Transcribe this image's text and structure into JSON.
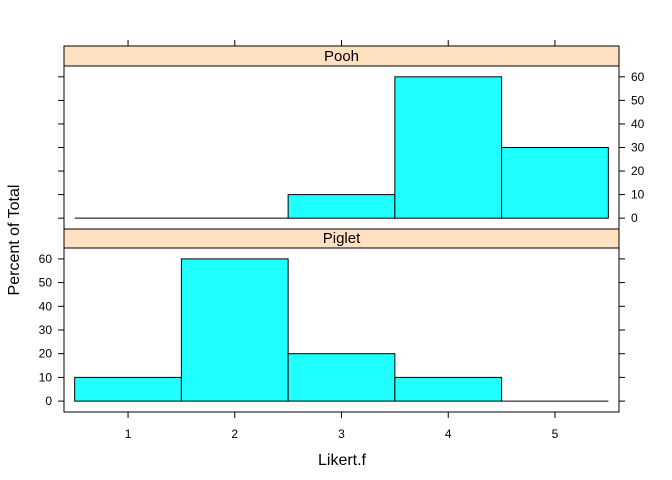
{
  "chart_data": {
    "type": "bar",
    "xlabel": "Likert.f",
    "ylabel": "Percent of Total",
    "categories": [
      "1",
      "2",
      "3",
      "4",
      "5"
    ],
    "ylim": [
      0,
      60
    ],
    "yticks": [
      0,
      10,
      20,
      30,
      40,
      50,
      60
    ],
    "grid": false,
    "bar_color": "#1FFFFF",
    "strip_color": "#FFE0C0",
    "panels": [
      {
        "name": "Pooh",
        "values": [
          0,
          0,
          10,
          60,
          30
        ]
      },
      {
        "name": "Piglet",
        "values": [
          10,
          60,
          20,
          10,
          0
        ]
      }
    ]
  }
}
